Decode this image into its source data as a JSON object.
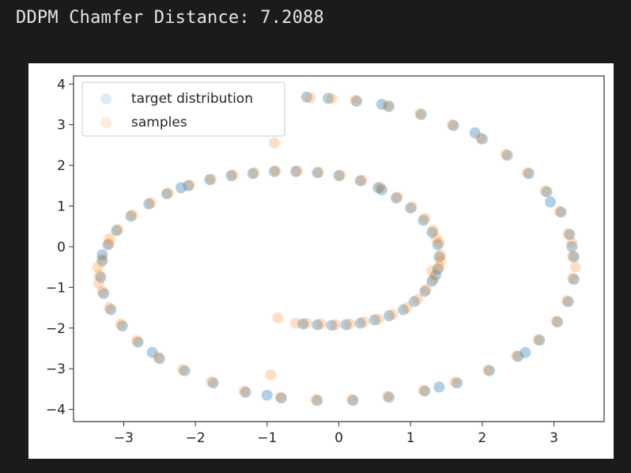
{
  "output": {
    "text": "DDPM Chamfer Distance: 7.2088"
  },
  "colors": {
    "background": "#1b1b1b",
    "text": "#e6e6e6",
    "target": "#1f77b4",
    "samples": "#ff7f0e"
  },
  "chart_data": {
    "type": "scatter",
    "title": "",
    "xlabel": "",
    "ylabel": "",
    "xlim": [
      -3.7,
      3.7
    ],
    "ylim": [
      -4.3,
      4.2
    ],
    "xticks": [
      -3,
      -2,
      -1,
      0,
      1,
      2,
      3
    ],
    "yticks": [
      -4,
      -3,
      -2,
      -1,
      0,
      1,
      2,
      3,
      4
    ],
    "grid": false,
    "legend": {
      "location": "upper-left",
      "entries": [
        "target distribution",
        "samples"
      ]
    },
    "marker_alpha": 0.12,
    "series": [
      {
        "name": "target distribution",
        "color": "#1f77b4",
        "points": [
          [
            -0.5,
            -1.9
          ],
          [
            -0.3,
            -1.92
          ],
          [
            -0.1,
            -1.93
          ],
          [
            0.1,
            -1.92
          ],
          [
            0.3,
            -1.88
          ],
          [
            0.5,
            -1.8
          ],
          [
            0.7,
            -1.7
          ],
          [
            0.9,
            -1.55
          ],
          [
            1.05,
            -1.35
          ],
          [
            1.2,
            -1.1
          ],
          [
            1.3,
            -0.85
          ],
          [
            1.38,
            -0.55
          ],
          [
            1.4,
            -0.25
          ],
          [
            1.38,
            0.05
          ],
          [
            1.3,
            0.35
          ],
          [
            1.18,
            0.65
          ],
          [
            1.0,
            0.95
          ],
          [
            0.8,
            1.2
          ],
          [
            0.55,
            1.45
          ],
          [
            0.3,
            1.62
          ],
          [
            0.0,
            1.75
          ],
          [
            -0.3,
            1.82
          ],
          [
            -0.6,
            1.85
          ],
          [
            -0.9,
            1.85
          ],
          [
            -1.2,
            1.8
          ],
          [
            -1.5,
            1.75
          ],
          [
            -1.8,
            1.65
          ],
          [
            -2.1,
            1.5
          ],
          [
            -2.4,
            1.3
          ],
          [
            -2.65,
            1.05
          ],
          [
            -2.9,
            0.75
          ],
          [
            -3.1,
            0.4
          ],
          [
            -3.22,
            0.05
          ],
          [
            -3.3,
            -0.35
          ],
          [
            -3.32,
            -0.75
          ],
          [
            -3.28,
            -1.15
          ],
          [
            -3.18,
            -1.55
          ],
          [
            -3.02,
            -1.95
          ],
          [
            -2.8,
            -2.35
          ],
          [
            -2.5,
            -2.75
          ],
          [
            -2.15,
            -3.05
          ],
          [
            -1.75,
            -3.35
          ],
          [
            -1.3,
            -3.58
          ],
          [
            -0.8,
            -3.72
          ],
          [
            -0.3,
            -3.78
          ],
          [
            0.2,
            -3.78
          ],
          [
            0.7,
            -3.7
          ],
          [
            1.2,
            -3.55
          ],
          [
            1.65,
            -3.35
          ],
          [
            2.1,
            -3.05
          ],
          [
            2.5,
            -2.7
          ],
          [
            2.8,
            -2.3
          ],
          [
            3.05,
            -1.85
          ],
          [
            3.2,
            -1.35
          ],
          [
            3.28,
            -0.8
          ],
          [
            3.28,
            -0.25
          ],
          [
            3.22,
            0.3
          ],
          [
            3.1,
            0.85
          ],
          [
            2.9,
            1.35
          ],
          [
            2.65,
            1.8
          ],
          [
            2.35,
            2.25
          ],
          [
            2.0,
            2.65
          ],
          [
            1.6,
            2.98
          ],
          [
            1.15,
            3.25
          ],
          [
            0.7,
            3.45
          ],
          [
            0.25,
            3.58
          ],
          [
            -0.15,
            3.65
          ],
          [
            -0.45,
            3.68
          ],
          [
            0.6,
            3.5
          ],
          [
            1.9,
            2.8
          ],
          [
            2.95,
            1.1
          ],
          [
            3.25,
            0.0
          ],
          [
            2.6,
            -2.6
          ],
          [
            1.4,
            -3.45
          ],
          [
            -1.0,
            -3.65
          ],
          [
            -2.6,
            -2.6
          ],
          [
            -3.3,
            -0.2
          ],
          [
            -2.2,
            1.45
          ],
          [
            0.6,
            1.4
          ],
          [
            1.35,
            -0.7
          ]
        ]
      },
      {
        "name": "samples",
        "color": "#ff7f0e",
        "points": [
          [
            -0.45,
            -1.88
          ],
          [
            -0.25,
            -1.9
          ],
          [
            -0.05,
            -1.92
          ],
          [
            0.15,
            -1.9
          ],
          [
            0.35,
            -1.85
          ],
          [
            0.55,
            -1.78
          ],
          [
            0.75,
            -1.66
          ],
          [
            0.95,
            -1.5
          ],
          [
            1.1,
            -1.3
          ],
          [
            1.22,
            -1.05
          ],
          [
            1.32,
            -0.8
          ],
          [
            1.4,
            -0.5
          ],
          [
            1.42,
            -0.2
          ],
          [
            1.4,
            0.1
          ],
          [
            1.32,
            0.4
          ],
          [
            1.2,
            0.7
          ],
          [
            1.02,
            0.98
          ],
          [
            0.82,
            1.22
          ],
          [
            0.58,
            1.46
          ],
          [
            0.32,
            1.63
          ],
          [
            0.02,
            1.76
          ],
          [
            -0.28,
            1.83
          ],
          [
            -0.58,
            1.86
          ],
          [
            -0.88,
            1.86
          ],
          [
            -1.18,
            1.82
          ],
          [
            -1.48,
            1.76
          ],
          [
            -1.78,
            1.66
          ],
          [
            -2.08,
            1.52
          ],
          [
            -2.38,
            1.32
          ],
          [
            -2.62,
            1.08
          ],
          [
            -2.88,
            0.78
          ],
          [
            -3.08,
            0.42
          ],
          [
            -3.2,
            0.08
          ],
          [
            -3.3,
            -0.3
          ],
          [
            -3.34,
            -0.7
          ],
          [
            -3.3,
            -1.1
          ],
          [
            -3.2,
            -1.5
          ],
          [
            -3.04,
            -1.9
          ],
          [
            -2.82,
            -2.3
          ],
          [
            -2.52,
            -2.72
          ],
          [
            -2.18,
            -3.02
          ],
          [
            -1.78,
            -3.32
          ],
          [
            -1.32,
            -3.55
          ],
          [
            -0.82,
            -3.7
          ],
          [
            -0.32,
            -3.76
          ],
          [
            0.18,
            -3.76
          ],
          [
            0.68,
            -3.68
          ],
          [
            1.18,
            -3.53
          ],
          [
            1.62,
            -3.33
          ],
          [
            2.08,
            -3.03
          ],
          [
            2.48,
            -2.68
          ],
          [
            2.78,
            -2.28
          ],
          [
            3.03,
            -1.83
          ],
          [
            3.18,
            -1.33
          ],
          [
            3.26,
            -0.78
          ],
          [
            3.26,
            -0.23
          ],
          [
            3.2,
            0.32
          ],
          [
            3.08,
            0.87
          ],
          [
            2.88,
            1.37
          ],
          [
            2.63,
            1.82
          ],
          [
            2.33,
            2.27
          ],
          [
            1.98,
            2.67
          ],
          [
            1.58,
            3.0
          ],
          [
            1.13,
            3.27
          ],
          [
            0.68,
            3.47
          ],
          [
            0.23,
            3.6
          ],
          [
            -0.1,
            3.64
          ],
          [
            -0.4,
            3.66
          ],
          [
            -0.9,
            2.55
          ],
          [
            -0.95,
            -3.15
          ],
          [
            -0.85,
            -1.75
          ],
          [
            -0.6,
            -1.88
          ],
          [
            1.3,
            -0.6
          ],
          [
            1.42,
            -0.35
          ],
          [
            1.36,
            0.2
          ],
          [
            -3.35,
            -0.9
          ],
          [
            -3.36,
            -0.5
          ],
          [
            -3.2,
            0.2
          ],
          [
            3.3,
            -0.5
          ],
          [
            3.25,
            0.1
          ]
        ]
      }
    ]
  }
}
